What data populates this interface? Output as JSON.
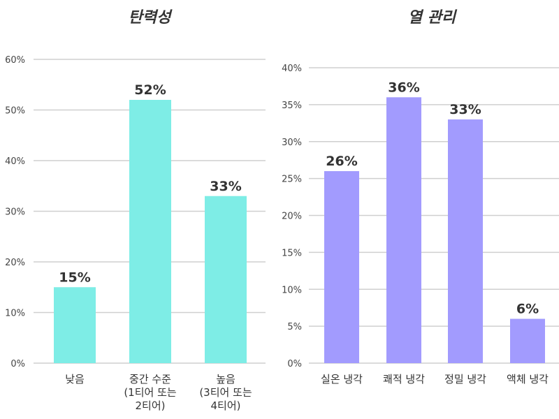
{
  "chart_data": [
    {
      "type": "bar",
      "title": "탄력성",
      "categories": [
        [
          "낮음"
        ],
        [
          "중간 수준",
          "(1티어 또는",
          "2티어)"
        ],
        [
          "높음",
          "(3티어 또는",
          "4티어)"
        ]
      ],
      "values": [
        15,
        52,
        33
      ],
      "data_labels": [
        "15%",
        "52%",
        "33%"
      ],
      "yticks": [
        "0%",
        "10%",
        "20%",
        "30%",
        "40%",
        "50%",
        "60%"
      ],
      "ylim": [
        0,
        60
      ],
      "grid": true,
      "color": "#7EEDE6"
    },
    {
      "type": "bar",
      "title": "열 관리",
      "categories": [
        [
          "실온 냉각"
        ],
        [
          "쾌적 냉각"
        ],
        [
          "정밀 냉각"
        ],
        [
          "액체 냉각"
        ]
      ],
      "values": [
        26,
        36,
        33,
        6
      ],
      "data_labels": [
        "26%",
        "36%",
        "33%",
        "6%"
      ],
      "yticks": [
        "0%",
        "5%",
        "10%",
        "15%",
        "20%",
        "25%",
        "30%",
        "35%",
        "40%"
      ],
      "ylim": [
        0,
        40
      ],
      "grid": true,
      "color": "#A29BFE"
    }
  ]
}
